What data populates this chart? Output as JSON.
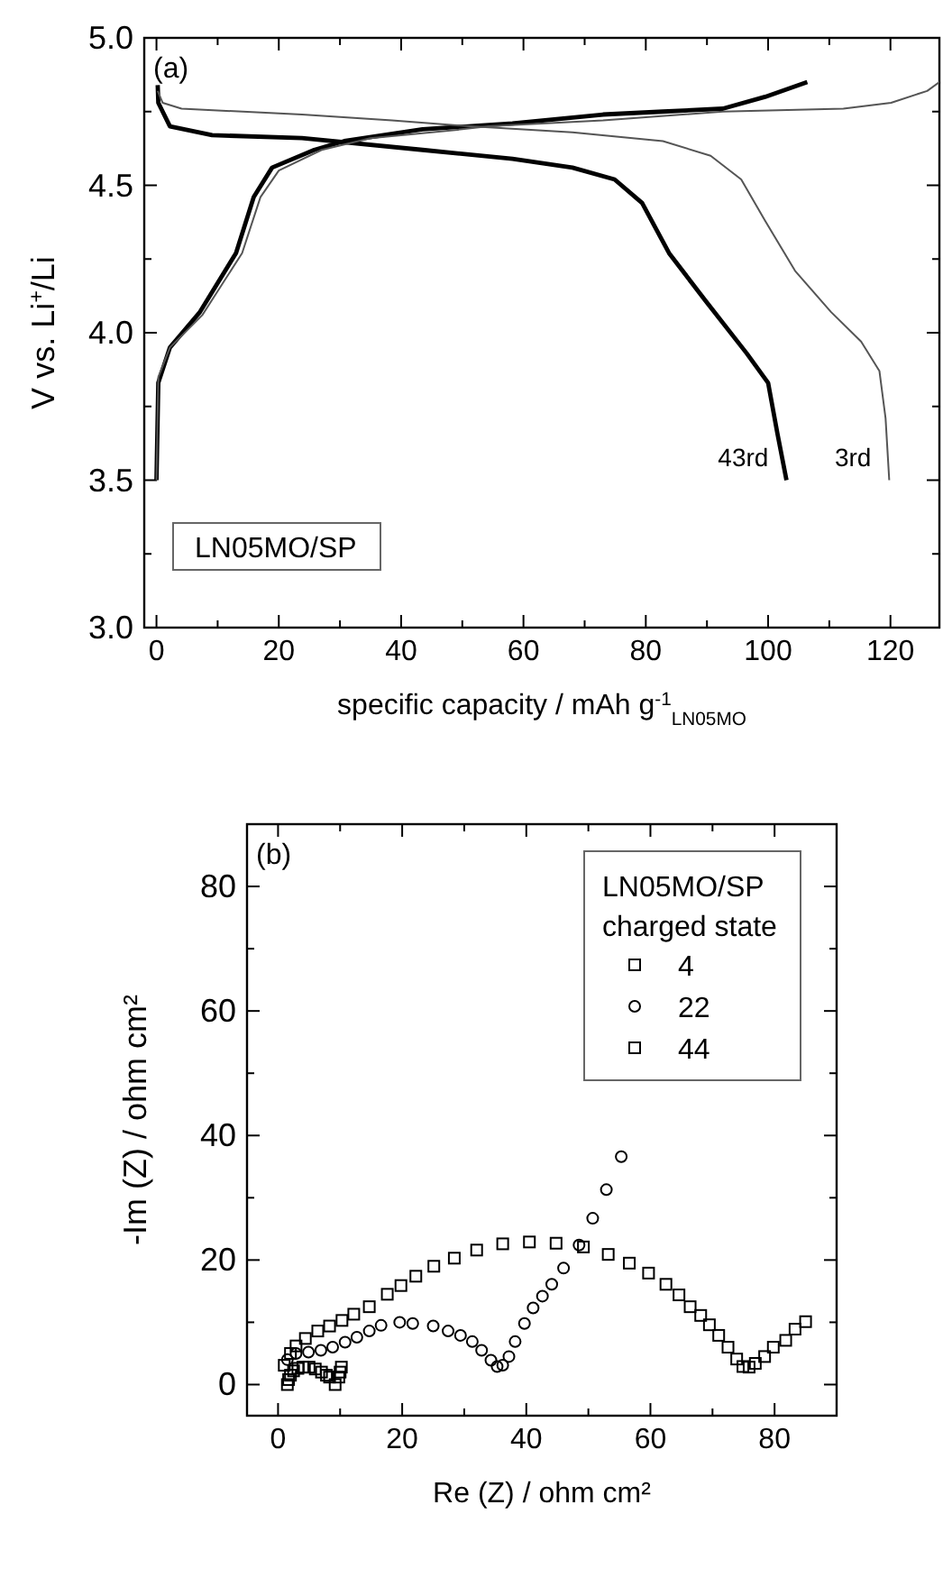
{
  "chart_data": [
    {
      "type": "line",
      "xlabel": "specific capacity / mAh g$^{-1}$$_{LN05MO}$",
      "ylabel": "V vs. Li$^{+}$/Li",
      "xlim": [
        -2,
        128
      ],
      "ylim": [
        3.0,
        5.0
      ],
      "xticks": [
        0,
        {
          "value": 10,
          "label": null
        },
        20,
        {
          "value": 30,
          "label": null
        },
        40,
        {
          "value": 50,
          "label": null
        },
        60,
        {
          "value": 70,
          "label": null
        },
        80,
        {
          "value": 90,
          "label": null
        },
        100,
        {
          "value": 110,
          "label": null
        },
        120
      ],
      "yticks": [
        {
          "value": 3,
          "label": "3.0"
        },
        {
          "value": 3.25,
          "label": null
        },
        3.5,
        {
          "value": 3.75,
          "label": null
        },
        {
          "value": 4,
          "label": "4.0"
        },
        {
          "value": 4.25,
          "label": null
        },
        4.5,
        {
          "value": 4.75,
          "label": null
        },
        {
          "value": 5,
          "label": "5.0"
        }
      ],
      "annotations": [
        "(a)",
        "LN05MO/SP"
      ],
      "grid": false,
      "legend": false,
      "marker": "none",
      "line_style": "solid",
      "series": [
        {
          "name": "43rd",
          "color": "#000000",
          "x": [
            0.2,
            0.3,
            2.2,
            9.1,
            23.8,
            43.5,
            58.2,
            68,
            74.9,
            79.4,
            83.8,
            89.7,
            96.5,
            100,
            101.5,
            103
          ],
          "values": [
            4.84,
            4.78,
            4.7,
            4.67,
            4.66,
            4.62,
            4.59,
            4.56,
            4.52,
            4.44,
            4.27,
            4.11,
            3.93,
            3.83,
            3.66,
            3.5
          ]
        },
        {
          "color": "#000000",
          "x": [
            0,
            0.3,
            2.2,
            7.1,
            13,
            15.9,
            18.9,
            25.8,
            30.7,
            43.5,
            58.2,
            73,
            82.8,
            92.6,
            99.5,
            106.4
          ],
          "values": [
            3.5,
            3.83,
            3.95,
            4.07,
            4.27,
            4.46,
            4.56,
            4.62,
            4.65,
            4.69,
            4.71,
            4.74,
            4.75,
            4.76,
            4.8,
            4.85
          ]
        },
        {
          "name": "3rd",
          "color": "#555555",
          "x": [
            0.2,
            1,
            4.1,
            23.8,
            38.5,
            51.3,
            68,
            82.8,
            90.6,
            95.6,
            99.5,
            104.4,
            110.3,
            115.2,
            118.2,
            119.2,
            119.8
          ],
          "values": [
            4.82,
            4.78,
            4.76,
            4.74,
            4.72,
            4.7,
            4.68,
            4.65,
            4.6,
            4.52,
            4.38,
            4.21,
            4.07,
            3.97,
            3.87,
            3.71,
            3.5
          ]
        },
        {
          "color": "#555555",
          "x": [
            0,
            0.3,
            2.2,
            7.5,
            14,
            17,
            20,
            27,
            35,
            50,
            54.3,
            73,
            92.6,
            112.3,
            120.1,
            126,
            128
          ],
          "values": [
            3.5,
            3.85,
            3.95,
            4.06,
            4.27,
            4.46,
            4.55,
            4.62,
            4.66,
            4.69,
            4.7,
            4.72,
            4.75,
            4.76,
            4.78,
            4.82,
            4.85
          ]
        }
      ]
    },
    {
      "type": "scatter",
      "xlabel": "Re (Z) / ohm cm²",
      "ylabel": "-Im (Z) / ohm cm²",
      "xlim": [
        -5,
        90
      ],
      "ylim": [
        -5,
        90
      ],
      "xticks": [
        0,
        {
          "value": 10,
          "label": null
        },
        20,
        {
          "value": 30,
          "label": null
        },
        40,
        {
          "value": 50,
          "label": null
        },
        60,
        {
          "value": 70,
          "label": null
        },
        80
      ],
      "yticks": [
        0,
        {
          "value": 10,
          "label": null
        },
        20,
        {
          "value": 30,
          "label": null
        },
        40,
        {
          "value": 50,
          "label": null
        },
        60,
        {
          "value": 70,
          "label": null
        },
        80
      ],
      "annotations": [
        "(b)"
      ],
      "legend_title": "LN05MO/SP\ncharged state",
      "legend": "top right",
      "grid": false,
      "series": [
        {
          "name": "4",
          "color": "#000000",
          "marker": "square",
          "x": [
            1.5,
            1.7,
            2,
            2.5,
            3.2,
            4,
            5,
            6,
            7,
            7.8,
            8.3,
            9.2,
            9.8,
            10,
            10.2
          ],
          "values": [
            0,
            0.8,
            1.5,
            2.2,
            2.6,
            2.8,
            2.8,
            2.5,
            2,
            1.5,
            1.2,
            0,
            1.2,
            2,
            2.8
          ]
        },
        {
          "name": "22",
          "color": "#000000",
          "marker": "circle",
          "x": [
            1.5,
            2.9,
            4.9,
            6.9,
            8.8,
            10.8,
            12.7,
            14.7,
            16.6,
            19.6,
            21.7,
            25,
            27.4,
            29.4,
            31.3,
            32.8,
            34.3,
            35.3,
            36.2,
            37.2,
            38.2,
            39.7,
            41.1,
            42.6,
            44.1,
            46,
            48.5,
            50.7,
            52.9,
            55.3
          ],
          "values": [
            4,
            5,
            5.2,
            5.5,
            6,
            6.8,
            7.6,
            8.6,
            9.5,
            10,
            9.8,
            9.4,
            8.6,
            7.9,
            6.9,
            5.5,
            3.9,
            2.9,
            3.1,
            4.5,
            6.9,
            9.8,
            12.3,
            14.2,
            16.1,
            18.7,
            22.4,
            26.7,
            31.3,
            36.6
          ]
        },
        {
          "name": "44",
          "color": "#000000",
          "marker": "square",
          "x": [
            1,
            2,
            2.9,
            4.4,
            6.4,
            8.3,
            10.3,
            12.2,
            14.7,
            17.6,
            19.8,
            22.2,
            25.1,
            28.4,
            32,
            36.2,
            40.5,
            44.8,
            49.2,
            53.2,
            56.6,
            59.7,
            62.5,
            64.6,
            66.4,
            68.1,
            69.5,
            71,
            72.5,
            73.9,
            74.9,
            75.9,
            76.9,
            78.4,
            79.8,
            81.8,
            83.3,
            85
          ],
          "values": [
            3.1,
            5,
            6.2,
            7.4,
            8.6,
            9.4,
            10.3,
            11.3,
            12.5,
            14.5,
            15.9,
            17.4,
            19,
            20.3,
            21.6,
            22.6,
            22.9,
            22.7,
            22.1,
            20.9,
            19.5,
            17.9,
            16.1,
            14.4,
            12.5,
            11.1,
            9.6,
            7.9,
            6,
            4.1,
            2.9,
            2.8,
            3.4,
            4.5,
            6,
            7.1,
            8.9,
            10.1
          ]
        }
      ]
    }
  ]
}
